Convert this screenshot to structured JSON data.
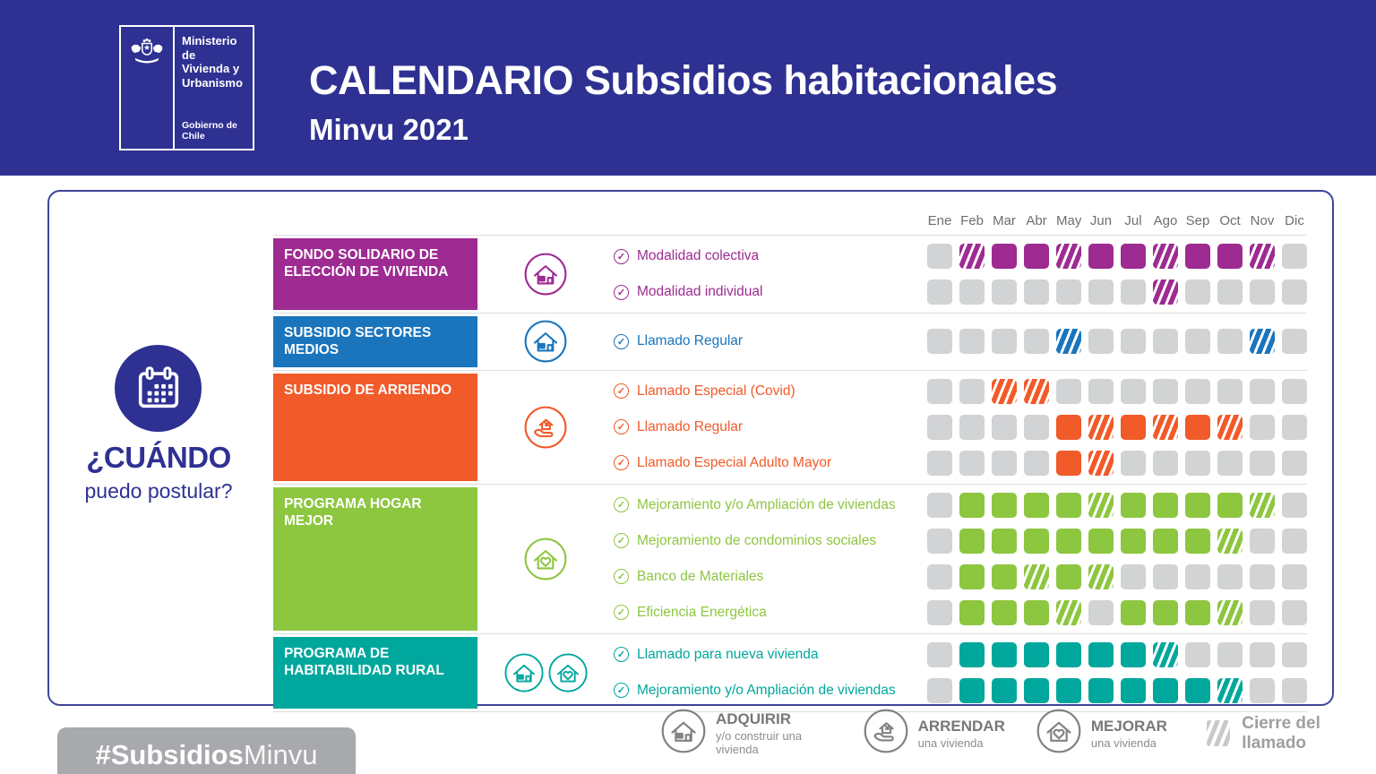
{
  "header": {
    "logo": {
      "ministry_1": "Ministerio de",
      "ministry_2": "Vivienda y",
      "ministry_3": "Urbanismo",
      "government": "Gobierno de Chile"
    },
    "title": "CALENDARIO Subsidios habitacionales",
    "subtitle": "Minvu 2021"
  },
  "when": {
    "bold": "¿CUÁNDO",
    "rest": "puedo postular?"
  },
  "colors": {
    "header_bg": "#2e3192",
    "panel_border": "#3f4496",
    "cell_off": "#d1d3d4",
    "separator": "#dcdddf",
    "legend_gray": "#9d9fa2",
    "hashtag_bg": "#a7a9ac"
  },
  "chart_data": {
    "type": "heatmap",
    "title": "CALENDARIO Subsidios habitacionales Minvu 2021",
    "x_categories": [
      "Ene",
      "Feb",
      "Mar",
      "Abr",
      "May",
      "Jun",
      "Jul",
      "Ago",
      "Sep",
      "Oct",
      "Nov",
      "Dic"
    ],
    "state_meaning": {
      "open": "postulación abierta (celda sólida)",
      "close": "Cierre del llamado (celda achurada)",
      "off": "sin llamado (celda gris)"
    },
    "groups": [
      {
        "name": "FONDO SOLIDARIO DE ELECCIÓN DE VIVIENDA",
        "color": "#9e2b92",
        "icons": [
          "house"
        ],
        "rows": [
          {
            "label": "Modalidad colectiva",
            "states": [
              "off",
              "close",
              "open",
              "open",
              "close",
              "open",
              "open",
              "close",
              "open",
              "open",
              "close",
              "off"
            ]
          },
          {
            "label": "Modalidad individual",
            "states": [
              "off",
              "off",
              "off",
              "off",
              "off",
              "off",
              "off",
              "close",
              "off",
              "off",
              "off",
              "off"
            ]
          }
        ]
      },
      {
        "name": "SUBSIDIO SECTORES MEDIOS",
        "color": "#1b75bc",
        "icons": [
          "house"
        ],
        "rows": [
          {
            "label": "Llamado Regular",
            "states": [
              "off",
              "off",
              "off",
              "off",
              "close",
              "off",
              "off",
              "off",
              "off",
              "off",
              "close",
              "off"
            ]
          }
        ]
      },
      {
        "name": "SUBSIDIO DE ARRIENDO",
        "color": "#f15a29",
        "icons": [
          "hand-house"
        ],
        "rows": [
          {
            "label": "Llamado Especial (Covid)",
            "states": [
              "off",
              "off",
              "close",
              "close",
              "off",
              "off",
              "off",
              "off",
              "off",
              "off",
              "off",
              "off"
            ]
          },
          {
            "label": "Llamado Regular",
            "states": [
              "off",
              "off",
              "off",
              "off",
              "open",
              "close",
              "open",
              "close",
              "open",
              "close",
              "off",
              "off"
            ]
          },
          {
            "label": "Llamado Especial Adulto Mayor",
            "states": [
              "off",
              "off",
              "off",
              "off",
              "open",
              "close",
              "off",
              "off",
              "off",
              "off",
              "off",
              "off"
            ]
          }
        ]
      },
      {
        "name": "PROGRAMA HOGAR MEJOR",
        "color": "#8dc63f",
        "icons": [
          "house-heart"
        ],
        "rows": [
          {
            "label": "Mejoramiento y/o Ampliación de viviendas",
            "states": [
              "off",
              "open",
              "open",
              "open",
              "open",
              "close",
              "open",
              "open",
              "open",
              "open",
              "close",
              "off"
            ]
          },
          {
            "label": "Mejoramiento de condominios sociales",
            "states": [
              "off",
              "open",
              "open",
              "open",
              "open",
              "open",
              "open",
              "open",
              "open",
              "close",
              "off",
              "off"
            ]
          },
          {
            "label": "Banco de Materiales",
            "states": [
              "off",
              "open",
              "open",
              "close",
              "open",
              "close",
              "off",
              "off",
              "off",
              "off",
              "off",
              "off"
            ]
          },
          {
            "label": "Eficiencia Energética",
            "states": [
              "off",
              "open",
              "open",
              "open",
              "close",
              "off",
              "open",
              "open",
              "open",
              "close",
              "off",
              "off"
            ]
          }
        ]
      },
      {
        "name": "PROGRAMA DE HABITABILIDAD RURAL",
        "color": "#00a79d",
        "icons": [
          "house",
          "house-heart"
        ],
        "rows": [
          {
            "label": "Llamado para nueva vivienda",
            "states": [
              "off",
              "open",
              "open",
              "open",
              "open",
              "open",
              "open",
              "close",
              "off",
              "off",
              "off",
              "off"
            ]
          },
          {
            "label": "Mejoramiento y/o Ampliación de viviendas",
            "states": [
              "off",
              "open",
              "open",
              "open",
              "open",
              "open",
              "open",
              "open",
              "open",
              "close",
              "off",
              "off"
            ]
          }
        ]
      }
    ]
  },
  "legend": {
    "items": [
      {
        "icon": "house",
        "title": "ADQUIRIR",
        "subtitle": "y/o construir una vivienda"
      },
      {
        "icon": "hand-house",
        "title": "ARRENDAR",
        "subtitle": "una vivienda"
      },
      {
        "icon": "house-heart",
        "title": "MEJORAR",
        "subtitle": "una vivienda"
      }
    ],
    "closure_label": "Cierre del llamado"
  },
  "hashtag": {
    "bold": "#Subsidios",
    "light": "Minvu"
  }
}
